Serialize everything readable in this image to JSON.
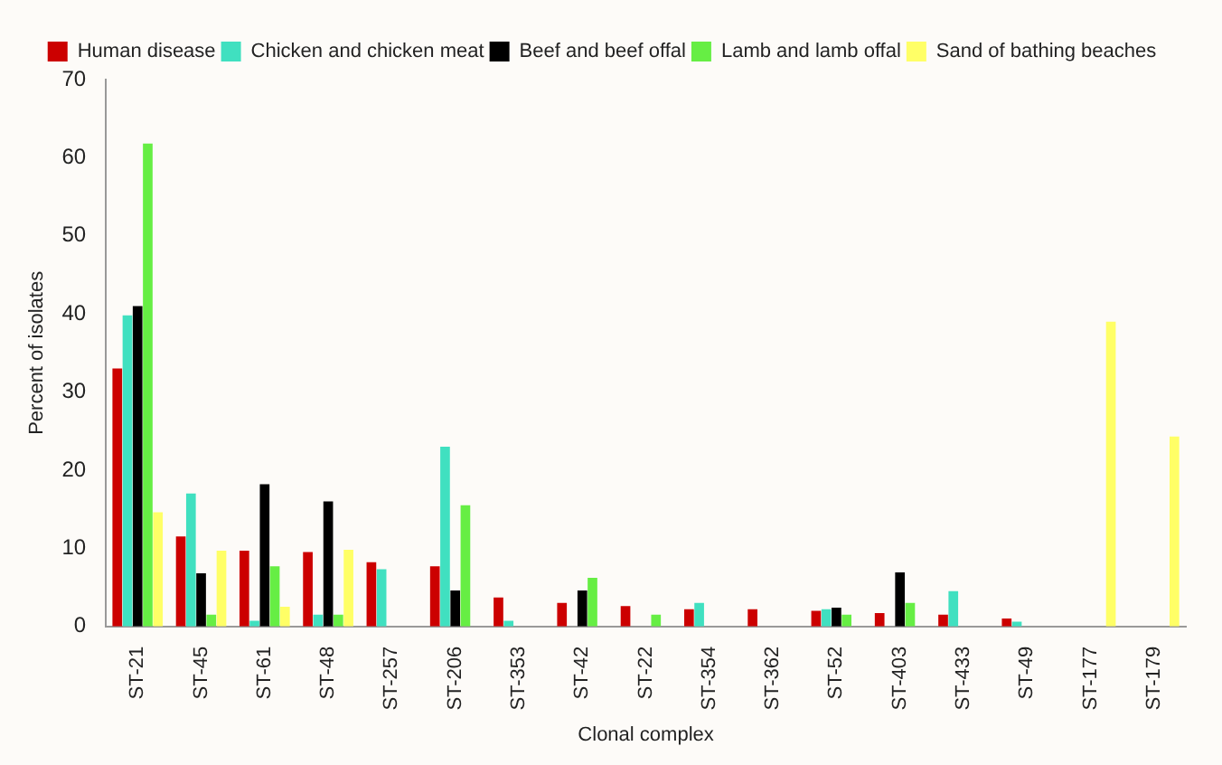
{
  "chart_data": {
    "type": "bar",
    "xlabel": "Clonal complex",
    "ylabel": "Percent of isolates",
    "categories": [
      "ST-21",
      "ST-45",
      "ST-61",
      "ST-48",
      "ST-257",
      "ST-206",
      "ST-353",
      "ST-42",
      "ST-22",
      "ST-354",
      "ST-362",
      "ST-52",
      "ST-403",
      "ST-433",
      "ST-49",
      "ST-177",
      "ST-179"
    ],
    "series": [
      {
        "name": "Human disease",
        "color": "#cc0000",
        "values": [
          33,
          11.5,
          9.7,
          9.5,
          8.2,
          7.7,
          3.7,
          3,
          2.6,
          2.2,
          2.2,
          2,
          1.7,
          1.5,
          1,
          null,
          null
        ]
      },
      {
        "name": "Chicken and chicken meat",
        "color": "#40e0c0",
        "values": [
          39.8,
          17,
          0.7,
          1.5,
          7.3,
          23,
          0.7,
          null,
          null,
          3,
          null,
          2.2,
          null,
          4.5,
          0.6,
          null,
          null
        ]
      },
      {
        "name": "Beef and beef offal",
        "color": "#000000",
        "values": [
          41,
          6.8,
          18.2,
          16,
          null,
          4.6,
          null,
          4.6,
          null,
          null,
          null,
          2.4,
          6.9,
          null,
          null,
          null,
          null
        ]
      },
      {
        "name": "Lamb and lamb offal",
        "color": "#66ee44",
        "values": [
          61.8,
          1.5,
          7.7,
          1.5,
          null,
          15.5,
          null,
          6.2,
          1.5,
          null,
          null,
          1.5,
          3,
          null,
          null,
          null,
          null
        ]
      },
      {
        "name": "Sand of bathing beaches",
        "color": "#ffff66",
        "values": [
          14.6,
          9.7,
          2.5,
          9.8,
          null,
          null,
          null,
          null,
          null,
          null,
          null,
          null,
          null,
          null,
          null,
          39,
          24.3
        ]
      }
    ],
    "ylim": [
      0,
      70
    ],
    "yticks": [
      0,
      10,
      20,
      30,
      40,
      50,
      60,
      70
    ],
    "grid": false,
    "legend": "top"
  }
}
